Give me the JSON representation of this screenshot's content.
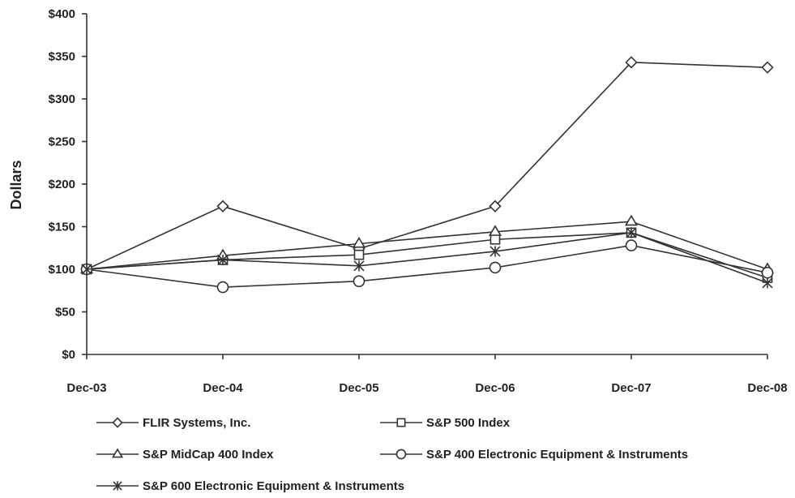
{
  "chart_data": {
    "type": "line",
    "categories": [
      "Dec-03",
      "Dec-04",
      "Dec-05",
      "Dec-06",
      "Dec-07",
      "Dec-08"
    ],
    "ylabel": "Dollars",
    "ylim": [
      0,
      400
    ],
    "yticks": [
      "$0",
      "$50",
      "$100",
      "$150",
      "$200",
      "$250",
      "$300",
      "$350",
      "$400"
    ],
    "grid": false,
    "legend_position": "bottom",
    "series": [
      {
        "name": "FLIR Systems, Inc.",
        "marker": "diamond",
        "values": [
          100,
          174,
          124,
          174,
          343,
          337
        ]
      },
      {
        "name": "S&P 500 Index",
        "marker": "square",
        "values": [
          100,
          111,
          117,
          135,
          143,
          90
        ]
      },
      {
        "name": "S&P MidCap 400 Index",
        "marker": "triangle",
        "values": [
          100,
          116,
          130,
          144,
          156,
          100
        ]
      },
      {
        "name": "S&P 400 Electronic Equipment & Instruments",
        "marker": "circle",
        "values": [
          100,
          79,
          86,
          102,
          128,
          96
        ]
      },
      {
        "name": "S&P 600 Electronic Equipment & Instruments",
        "marker": "star",
        "values": [
          100,
          111,
          104,
          121,
          143,
          84
        ]
      }
    ]
  }
}
